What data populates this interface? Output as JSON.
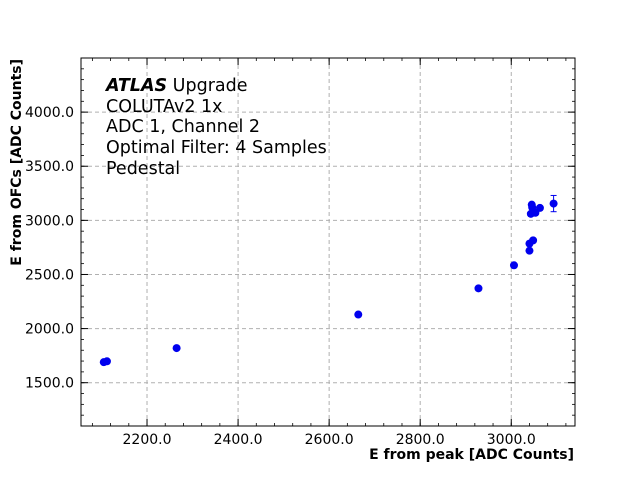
{
  "chart_data": {
    "type": "scatter",
    "xlabel": "E from peak [ADC Counts]",
    "ylabel": "E from OFCs [ADC Counts]",
    "xlim": [
      2055,
      3140
    ],
    "ylim": [
      1100,
      4500
    ],
    "x_ticks": [
      2200,
      2400,
      2600,
      2800,
      3000
    ],
    "x_tick_labels": [
      "2200.0",
      "2400.0",
      "2600.0",
      "2800.0",
      "3000.0"
    ],
    "y_ticks": [
      1500,
      2000,
      2500,
      3000,
      3500,
      4000
    ],
    "y_tick_labels": [
      "1500.0",
      "2000.0",
      "2500.0",
      "3000.0",
      "3500.0",
      "4000.0"
    ],
    "x_minor_step": 40,
    "y_minor_step": 100,
    "grid": true,
    "marker_color": "#0000ee",
    "annotation": {
      "atlas": "ATLAS",
      "upgrade": " Upgrade",
      "lines": [
        "COLUTAv2 1x",
        "ADC 1, Channel 2",
        "Optimal Filter: 4 Samples",
        "Pedestal"
      ]
    },
    "points": [
      {
        "x": 2105,
        "y": 1690
      },
      {
        "x": 2112,
        "y": 1698
      },
      {
        "x": 2265,
        "y": 1820
      },
      {
        "x": 2664,
        "y": 2130
      },
      {
        "x": 2928,
        "y": 2372
      },
      {
        "x": 3006,
        "y": 2585
      },
      {
        "x": 3040,
        "y": 2720
      },
      {
        "x": 3040,
        "y": 2785
      },
      {
        "x": 3048,
        "y": 2815
      },
      {
        "x": 3043,
        "y": 3060
      },
      {
        "x": 3048,
        "y": 3080
      },
      {
        "x": 3053,
        "y": 3070
      },
      {
        "x": 3046,
        "y": 3120
      },
      {
        "x": 3045,
        "y": 3145
      },
      {
        "x": 3063,
        "y": 3115
      },
      {
        "x": 3093,
        "y": 3155,
        "yerr": 75
      }
    ]
  }
}
